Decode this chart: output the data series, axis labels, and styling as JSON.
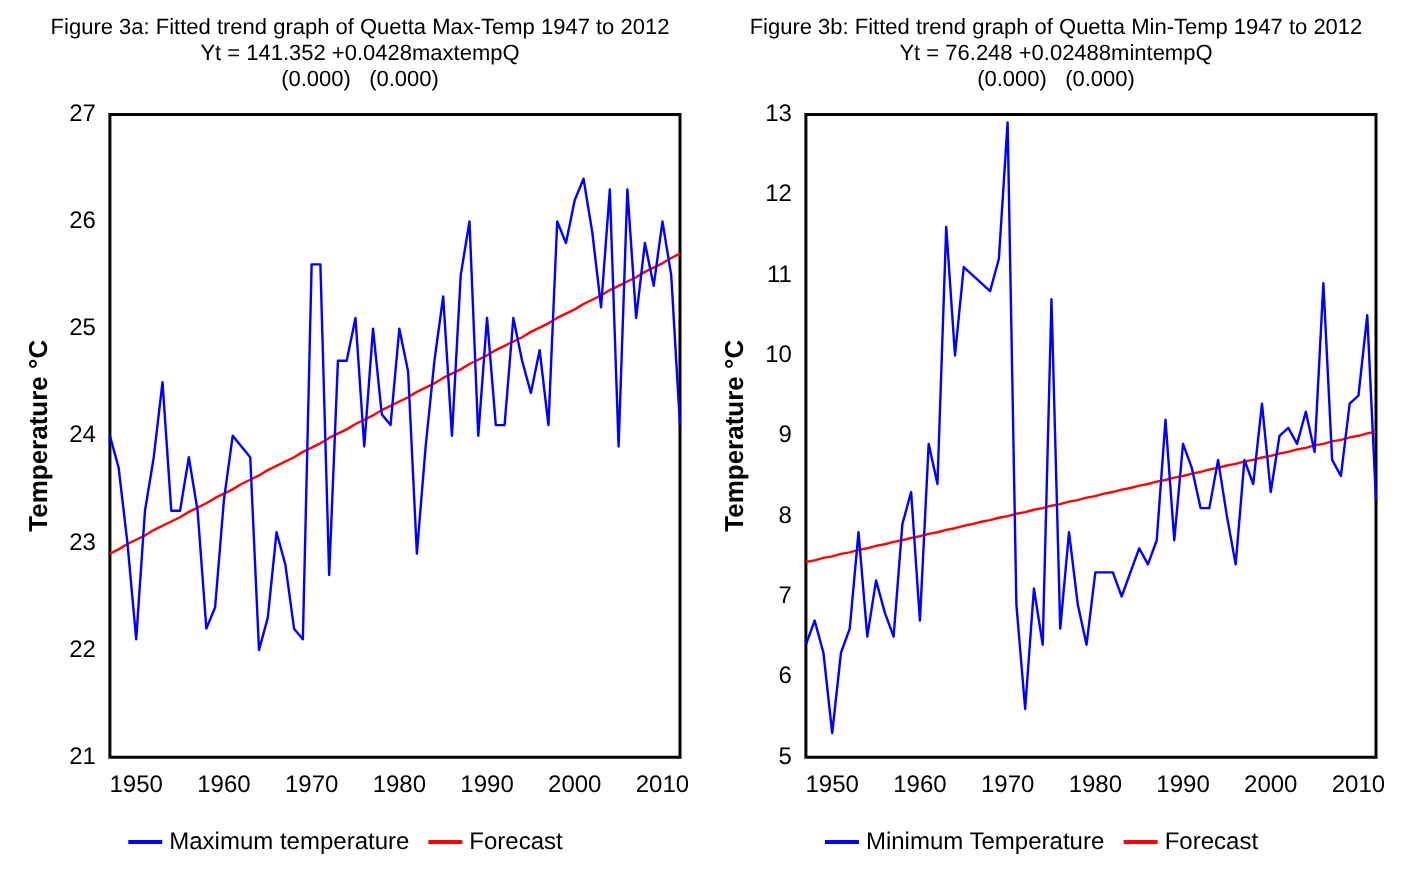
{
  "chart_data": [
    {
      "type": "line",
      "title": "Figure 3a: Fitted trend graph of Quetta Max-Temp 1947 to 2012",
      "subtitle": "Yt = 141.352 +0.0428maxtempQ",
      "annotations": [
        "(0.000)   (0.000)"
      ],
      "ylabel": "Temperature °C",
      "x": [
        1947,
        1948,
        1949,
        1950,
        1951,
        1952,
        1953,
        1954,
        1955,
        1956,
        1957,
        1958,
        1959,
        1960,
        1961,
        1962,
        1963,
        1964,
        1965,
        1966,
        1967,
        1968,
        1969,
        1970,
        1971,
        1972,
        1973,
        1974,
        1975,
        1976,
        1977,
        1978,
        1979,
        1980,
        1981,
        1982,
        1983,
        1984,
        1985,
        1986,
        1987,
        1988,
        1989,
        1990,
        1991,
        1992,
        1993,
        1994,
        1995,
        1996,
        1997,
        1998,
        1999,
        2000,
        2001,
        2002,
        2003,
        2004,
        2005,
        2006,
        2007,
        2008,
        2009,
        2010,
        2011,
        2012
      ],
      "series": [
        {
          "name": "Maximum temperature",
          "color": "#0000ff",
          "values": [
            24.0,
            23.7,
            23.0,
            22.1,
            23.3,
            23.8,
            24.5,
            23.3,
            23.3,
            23.8,
            23.3,
            22.2,
            22.4,
            23.4,
            24.0,
            23.9,
            23.8,
            22.0,
            22.3,
            23.1,
            22.8,
            22.2,
            22.1,
            25.6,
            25.6,
            22.7,
            24.7,
            24.7,
            25.1,
            23.9,
            25.0,
            24.2,
            24.1,
            25.0,
            24.6,
            22.9,
            23.9,
            24.7,
            25.3,
            24.0,
            25.5,
            26.0,
            24.0,
            25.1,
            24.1,
            24.1,
            25.1,
            24.7,
            24.4,
            24.8,
            24.1,
            26.0,
            25.8,
            26.2,
            26.4,
            25.9,
            25.2,
            26.3,
            23.9,
            26.3,
            25.1,
            25.8,
            25.4,
            26.0,
            25.5,
            24.1
          ]
        },
        {
          "name": "Forecast",
          "type": "line",
          "color": "#ff0000",
          "values": [
            22.9,
            22.94,
            22.99,
            23.03,
            23.07,
            23.12,
            23.16,
            23.2,
            23.24,
            23.29,
            23.33,
            23.37,
            23.42,
            23.46,
            23.5,
            23.55,
            23.59,
            23.63,
            23.68,
            23.72,
            23.76,
            23.8,
            23.85,
            23.89,
            23.93,
            23.98,
            24.02,
            24.06,
            24.11,
            24.15,
            24.19,
            24.24,
            24.28,
            24.32,
            24.36,
            24.41,
            24.45,
            24.49,
            24.54,
            24.58,
            24.62,
            24.67,
            24.71,
            24.75,
            24.8,
            24.84,
            24.88,
            24.92,
            24.97,
            25.01,
            25.05,
            25.1,
            25.14,
            25.18,
            25.23,
            25.27,
            25.31,
            25.36,
            25.4,
            25.44,
            25.48,
            25.53,
            25.57,
            25.61,
            25.66,
            25.7
          ]
        }
      ],
      "xlim": [
        1947,
        2012
      ],
      "xticks": [
        1950,
        1960,
        1970,
        1980,
        1990,
        2000,
        2010
      ],
      "ylim": [
        21,
        27
      ],
      "yticks": [
        21,
        22,
        23,
        24,
        25,
        26,
        27
      ],
      "grid": false,
      "legend": "bottom",
      "marker": "none"
    },
    {
      "type": "line",
      "title": "Figure 3b: Fitted trend graph of Quetta Min-Temp 1947 to 2012",
      "subtitle": "Yt = 76.248 +0.02488mintempQ",
      "annotations": [
        "(0.000)   (0.000)"
      ],
      "ylabel": "Temperature °C",
      "x": [
        1947,
        1948,
        1949,
        1950,
        1951,
        1952,
        1953,
        1954,
        1955,
        1956,
        1957,
        1958,
        1959,
        1960,
        1961,
        1962,
        1963,
        1964,
        1965,
        1966,
        1967,
        1968,
        1969,
        1970,
        1971,
        1972,
        1973,
        1974,
        1975,
        1976,
        1977,
        1978,
        1979,
        1980,
        1981,
        1982,
        1983,
        1984,
        1985,
        1986,
        1987,
        1988,
        1989,
        1990,
        1991,
        1992,
        1993,
        1994,
        1995,
        1996,
        1997,
        1998,
        1999,
        2000,
        2001,
        2002,
        2003,
        2004,
        2005,
        2006,
        2007,
        2008,
        2009,
        2010,
        2011,
        2012
      ],
      "series": [
        {
          "name": "Minimum Temperature",
          "color": "#0000ff",
          "values": [
            6.4,
            6.7,
            6.3,
            5.3,
            6.3,
            6.6,
            7.8,
            6.5,
            7.2,
            6.8,
            6.5,
            7.9,
            8.3,
            6.7,
            8.9,
            8.4,
            11.6,
            10.0,
            11.1,
            11.0,
            10.9,
            10.8,
            11.2,
            12.9,
            6.9,
            5.6,
            7.1,
            6.4,
            10.7,
            6.6,
            7.8,
            6.9,
            6.4,
            7.3,
            7.3,
            7.3,
            7.0,
            7.3,
            7.6,
            7.4,
            7.7,
            9.2,
            7.7,
            8.9,
            8.6,
            8.1,
            8.1,
            8.7,
            8.0,
            7.4,
            8.7,
            8.4,
            9.4,
            8.3,
            9.0,
            9.1,
            8.9,
            9.3,
            8.8,
            10.9,
            8.7,
            8.5,
            9.4,
            9.5,
            10.5,
            8.2
          ]
        },
        {
          "name": "Forecast",
          "type": "line",
          "color": "#ff0000",
          "values": [
            7.43,
            7.45,
            7.48,
            7.5,
            7.53,
            7.55,
            7.58,
            7.6,
            7.63,
            7.65,
            7.68,
            7.7,
            7.73,
            7.75,
            7.78,
            7.8,
            7.83,
            7.85,
            7.88,
            7.9,
            7.93,
            7.95,
            7.98,
            8.0,
            8.03,
            8.05,
            8.08,
            8.1,
            8.13,
            8.15,
            8.18,
            8.2,
            8.23,
            8.25,
            8.28,
            8.3,
            8.33,
            8.35,
            8.38,
            8.4,
            8.43,
            8.45,
            8.48,
            8.5,
            8.53,
            8.55,
            8.58,
            8.6,
            8.63,
            8.65,
            8.68,
            8.7,
            8.73,
            8.75,
            8.78,
            8.8,
            8.83,
            8.85,
            8.88,
            8.9,
            8.93,
            8.95,
            8.98,
            9.0,
            9.03,
            9.05
          ]
        }
      ],
      "xlim": [
        1947,
        2012
      ],
      "xticks": [
        1950,
        1960,
        1970,
        1980,
        1990,
        2000,
        2010
      ],
      "ylim": [
        5,
        13
      ],
      "yticks": [
        5,
        6,
        7,
        8,
        9,
        10,
        11,
        12,
        13
      ],
      "grid": false,
      "legend": "bottom",
      "marker": "none"
    }
  ]
}
